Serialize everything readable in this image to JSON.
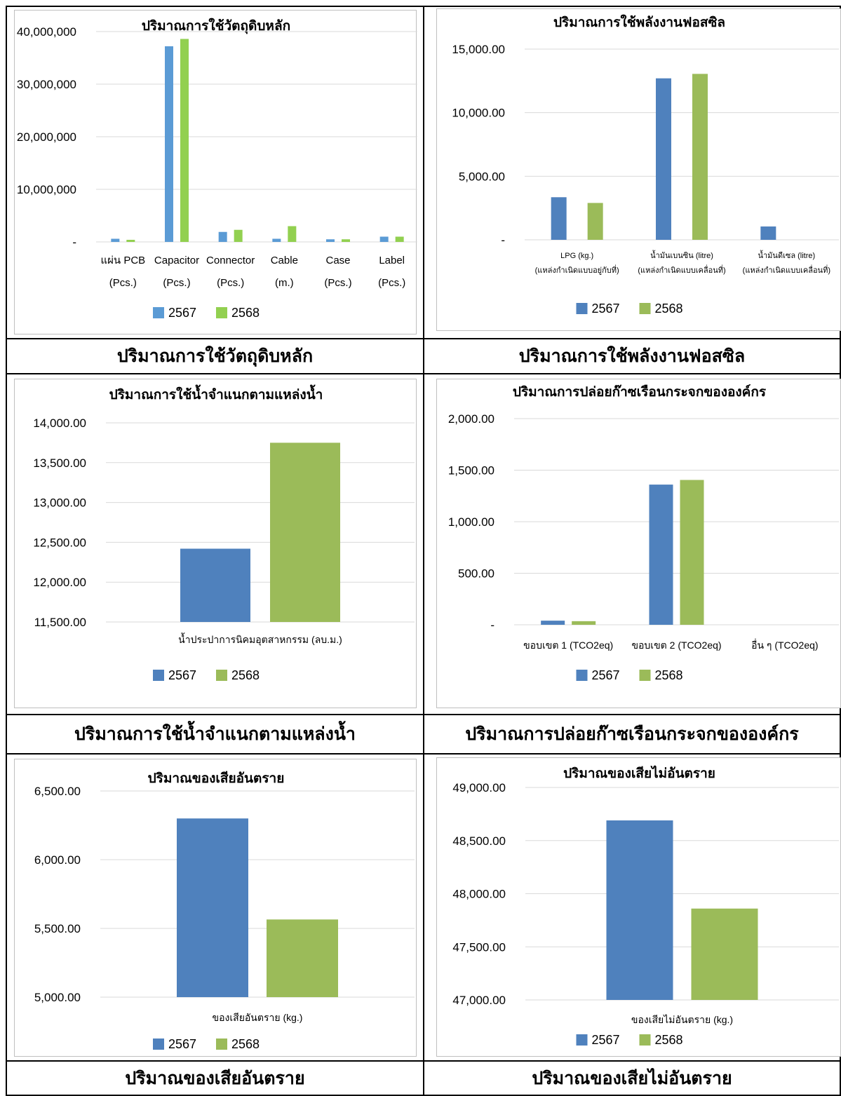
{
  "captions": [
    "ปริมาณการใช้วัตถุดิบหลัก",
    "ปริมาณการใช้พลังงานฟอสซิล",
    "ปริมาณการใช้น้ำจำแนกตามแหล่งน้ำ",
    "ปริมาณการปล่อยก๊าซเรือนกระจกขององค์กร",
    "ปริมาณของเสียอันตราย",
    "ปริมาณของเสียไม่อันตราย"
  ],
  "colors": {
    "series_2567_light": "#5b9bd5",
    "series_2568_light": "#92d050",
    "series_2567": "#4f81bd",
    "series_2568": "#9bbb59",
    "gridline": "#d9d9d9"
  },
  "chart_data": [
    {
      "type": "bar",
      "title": "ปริมาณการใช้วัตถุดิบหลัก",
      "categories": [
        [
          "แผ่น PCB",
          "(Pcs.)"
        ],
        [
          "Capacitor",
          "(Pcs.)"
        ],
        [
          "Connector",
          "(Pcs.)"
        ],
        [
          "Cable",
          "(m.)"
        ],
        [
          "Case",
          "(Pcs.)"
        ],
        [
          "Label",
          "(Pcs.)"
        ]
      ],
      "series": [
        {
          "name": "2567",
          "values": [
            600000,
            37200000,
            1900000,
            600000,
            500000,
            1000000
          ]
        },
        {
          "name": "2568",
          "values": [
            400000,
            38600000,
            2300000,
            3000000,
            500000,
            1000000
          ]
        }
      ],
      "ylim": [
        0,
        40000000
      ],
      "yticks": [
        0,
        10000000,
        20000000,
        30000000,
        40000000
      ],
      "ytick_labels": [
        "-",
        "10,000,000",
        "20,000,000",
        "30,000,000",
        "40,000,000"
      ],
      "grid": true,
      "legend": "bottom"
    },
    {
      "type": "bar",
      "title": "ปริมาณการใช้พลังงานฟอสซิล",
      "categories": [
        [
          "LPG (kg.)",
          "(แหล่งกำเนิดแบบอยู่กับที่)"
        ],
        [
          "น้ำมันเบนซิน (litre)",
          "(แหล่งกำเนิดแบบเคลื่อนที่)"
        ],
        [
          "น้ำมันดีเซล (litre)",
          "(แหล่งกำเนิดแบบเคลื่อนที่)"
        ]
      ],
      "series": [
        {
          "name": "2567",
          "values": [
            3350,
            12700,
            1050
          ]
        },
        {
          "name": "2568",
          "values": [
            2900,
            13050,
            0
          ]
        }
      ],
      "ylim": [
        0,
        15000
      ],
      "yticks": [
        0,
        5000,
        10000,
        15000
      ],
      "ytick_labels": [
        "-",
        "5,000.00",
        "10,000.00",
        "15,000.00"
      ],
      "grid": true,
      "legend": "bottom"
    },
    {
      "type": "bar",
      "title": "ปริมาณการใช้น้ำจำแนกตามแหล่งน้ำ",
      "categories": [
        [
          "น้ำประปาการนิคมอุตสาหกรรม (ลบ.ม.)"
        ]
      ],
      "series": [
        {
          "name": "2567",
          "values": [
            12420
          ]
        },
        {
          "name": "2568",
          "values": [
            13750
          ]
        }
      ],
      "ylim": [
        11500,
        14000
      ],
      "yticks": [
        11500,
        12000,
        12500,
        13000,
        13500,
        14000
      ],
      "ytick_labels": [
        "11,500.00",
        "12,000.00",
        "12,500.00",
        "13,000.00",
        "13,500.00",
        "14,000.00"
      ],
      "grid": true,
      "legend": "bottom"
    },
    {
      "type": "bar",
      "title": "ปริมาณการปล่อยก๊าซเรือนกระจกขององค์กร",
      "categories": [
        [
          "ขอบเขต 1 (TCO2eq)"
        ],
        [
          "ขอบเขต 2 (TCO2eq)"
        ],
        [
          "อื่น ๆ (TCO2eq)"
        ]
      ],
      "series": [
        {
          "name": "2567",
          "values": [
            40,
            1360,
            0
          ]
        },
        {
          "name": "2568",
          "values": [
            35,
            1405,
            0
          ]
        }
      ],
      "ylim": [
        0,
        2000
      ],
      "yticks": [
        0,
        500,
        1000,
        1500,
        2000
      ],
      "ytick_labels": [
        "-",
        "500.00",
        "1,000.00",
        "1,500.00",
        "2,000.00"
      ],
      "grid": true,
      "legend": "bottom"
    },
    {
      "type": "bar",
      "title": "ปริมาณของเสียอันตราย",
      "categories": [
        [
          "ของเสียอันตราย (kg.)"
        ]
      ],
      "series": [
        {
          "name": "2567",
          "values": [
            6300
          ]
        },
        {
          "name": "2568",
          "values": [
            5565
          ]
        }
      ],
      "ylim": [
        5000,
        6500
      ],
      "yticks": [
        5000,
        5500,
        6000,
        6500
      ],
      "ytick_labels": [
        "5,000.00",
        "5,500.00",
        "6,000.00",
        "6,500.00"
      ],
      "grid": true,
      "legend": "bottom"
    },
    {
      "type": "bar",
      "title": "ปริมาณของเสียไม่อันตราย",
      "categories": [
        [
          "ของเสียไม่อันตราย (kg.)"
        ]
      ],
      "series": [
        {
          "name": "2567",
          "values": [
            48690
          ]
        },
        {
          "name": "2568",
          "values": [
            47860
          ]
        }
      ],
      "ylim": [
        47000,
        49000
      ],
      "yticks": [
        47000,
        47500,
        48000,
        48500,
        49000
      ],
      "ytick_labels": [
        "47,000.00",
        "47,500.00",
        "48,000.00",
        "48,500.00",
        "49,000.00"
      ],
      "grid": true,
      "legend": "bottom"
    }
  ]
}
